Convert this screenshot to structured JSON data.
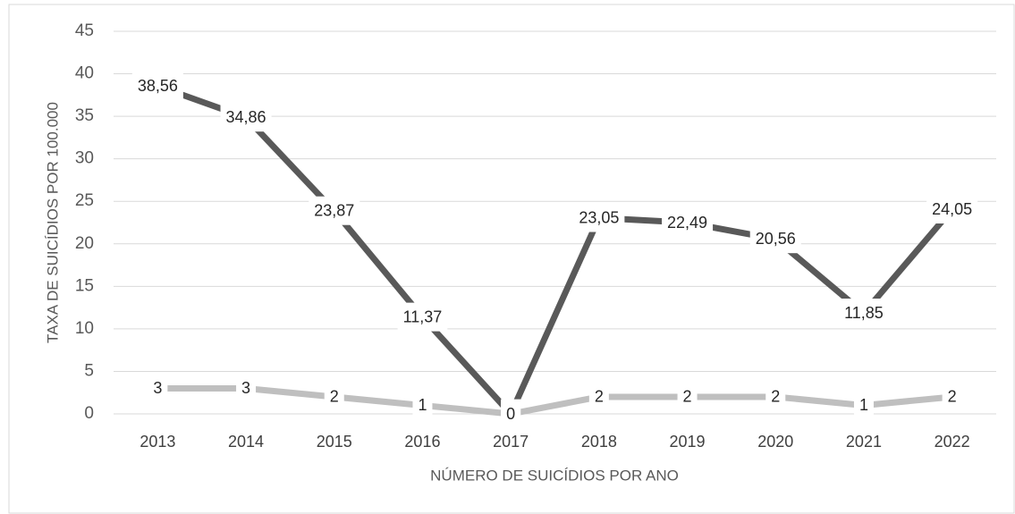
{
  "chart_data": {
    "type": "line",
    "x_label": "NÚMERO DE SUICÍDIOS POR ANO",
    "y_label": "TAXA DE SUICÍDIOS POR 100.000",
    "categories": [
      "2013",
      "2014",
      "2015",
      "2016",
      "2017",
      "2018",
      "2019",
      "2020",
      "2021",
      "2022"
    ],
    "series": [
      {
        "color": "#595959",
        "values": [
          38.56,
          34.86,
          23.87,
          11.37,
          0,
          23.05,
          22.49,
          20.56,
          11.85,
          24.05
        ],
        "value_labels": [
          "38,56",
          "34,86",
          "23,87",
          "11,37",
          "0",
          "23,05",
          "22,49",
          "20,56",
          "11,85",
          "24,05"
        ]
      },
      {
        "color": "#bfbfbf",
        "values": [
          3,
          3,
          2,
          1,
          0,
          2,
          2,
          2,
          1,
          2
        ]
      }
    ],
    "ylim": [
      0,
      45
    ],
    "yticks": [
      0,
      5,
      10,
      15,
      20,
      25,
      30,
      35,
      40,
      45
    ],
    "grid": true
  }
}
